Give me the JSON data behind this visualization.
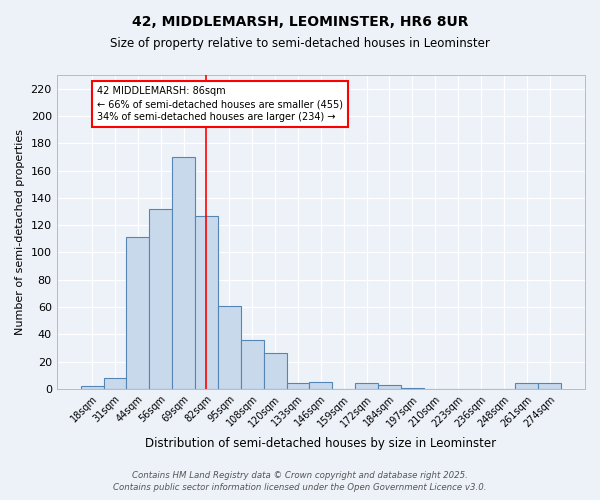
{
  "title_line1": "42, MIDDLEMARSH, LEOMINSTER, HR6 8UR",
  "title_line2": "Size of property relative to semi-detached houses in Leominster",
  "xlabel": "Distribution of semi-detached houses by size in Leominster",
  "ylabel": "Number of semi-detached properties",
  "bin_labels": [
    "18sqm",
    "31sqm",
    "44sqm",
    "56sqm",
    "69sqm",
    "82sqm",
    "95sqm",
    "108sqm",
    "120sqm",
    "133sqm",
    "146sqm",
    "159sqm",
    "172sqm",
    "184sqm",
    "197sqm",
    "210sqm",
    "223sqm",
    "236sqm",
    "248sqm",
    "261sqm",
    "274sqm"
  ],
  "bin_values": [
    2,
    8,
    111,
    132,
    170,
    127,
    61,
    36,
    26,
    4,
    5,
    0,
    4,
    3,
    1,
    0,
    0,
    0,
    0,
    4,
    4
  ],
  "bar_color": "#c9d9ec",
  "bar_edge_color": "#5585b5",
  "red_line_x": 5,
  "annotation_text": "42 MIDDLEMARSH: 86sqm\n← 66% of semi-detached houses are smaller (455)\n34% of semi-detached houses are larger (234) →",
  "annotation_box_color": "white",
  "annotation_box_edge_color": "red",
  "ylim": [
    0,
    230
  ],
  "yticks": [
    0,
    20,
    40,
    60,
    80,
    100,
    120,
    140,
    160,
    180,
    200,
    220
  ],
  "footer_line1": "Contains HM Land Registry data © Crown copyright and database right 2025.",
  "footer_line2": "Contains public sector information licensed under the Open Government Licence v3.0.",
  "background_color": "#edf2f9",
  "plot_bg_color": "#edf2f9"
}
